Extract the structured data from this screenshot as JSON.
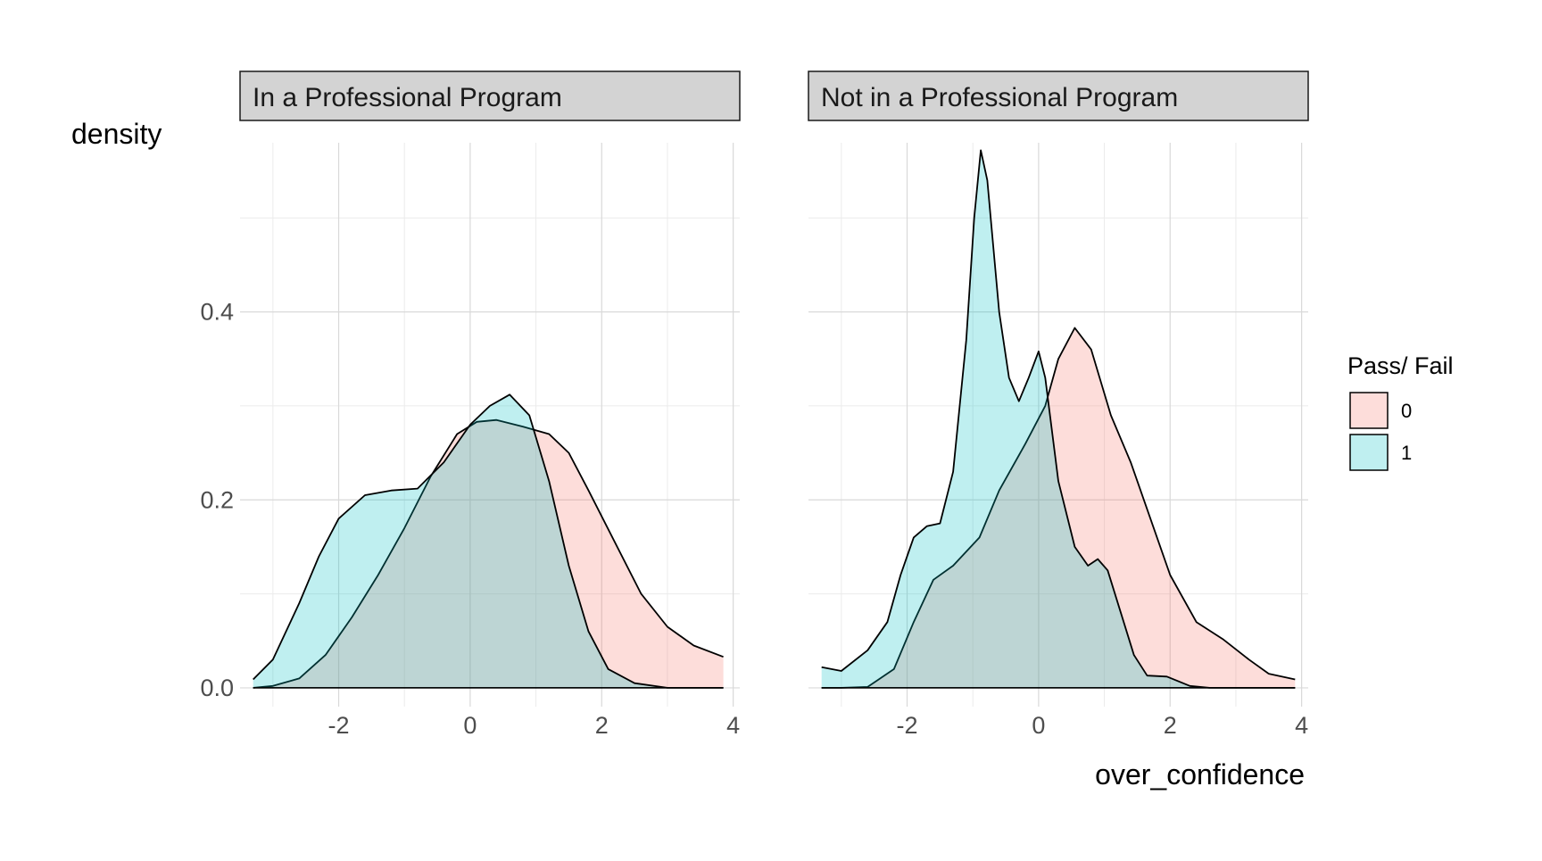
{
  "chart_data": {
    "type": "area",
    "kind": "faceted density plot",
    "ylabel": "density",
    "xlabel": "over_confidence",
    "xlim": [
      -3.5,
      4.1
    ],
    "ylim": [
      -0.02,
      0.58
    ],
    "x_ticks": [
      -2,
      0,
      2,
      4
    ],
    "x_tick_labels": [
      "-2",
      "0",
      "2",
      "4"
    ],
    "y_ticks": [
      0.0,
      0.2,
      0.4
    ],
    "y_tick_labels": [
      "0.0",
      "0.2",
      "0.4"
    ],
    "grid": true,
    "legend": {
      "title": "Pass/ Fail",
      "position": "right",
      "entries": [
        {
          "label": "0",
          "color": "#F8766D"
        },
        {
          "label": "1",
          "color": "#00BFC4"
        }
      ]
    },
    "panels": [
      {
        "strip": "In a Professional Program",
        "series": [
          {
            "name": "0",
            "color": "#F8766D",
            "points": [
              [
                -3.3,
                0.0
              ],
              [
                -3.0,
                0.002
              ],
              [
                -2.6,
                0.01
              ],
              [
                -2.2,
                0.035
              ],
              [
                -1.8,
                0.075
              ],
              [
                -1.4,
                0.12
              ],
              [
                -1.0,
                0.17
              ],
              [
                -0.6,
                0.225
              ],
              [
                -0.2,
                0.27
              ],
              [
                0.1,
                0.283
              ],
              [
                0.4,
                0.285
              ],
              [
                0.8,
                0.278
              ],
              [
                1.2,
                0.27
              ],
              [
                1.5,
                0.25
              ],
              [
                1.8,
                0.21
              ],
              [
                2.2,
                0.155
              ],
              [
                2.6,
                0.1
              ],
              [
                3.0,
                0.065
              ],
              [
                3.4,
                0.045
              ],
              [
                3.85,
                0.033
              ]
            ]
          },
          {
            "name": "1",
            "color": "#00BFC4",
            "points": [
              [
                -3.3,
                0.009
              ],
              [
                -3.0,
                0.03
              ],
              [
                -2.6,
                0.09
              ],
              [
                -2.3,
                0.14
              ],
              [
                -2.0,
                0.18
              ],
              [
                -1.6,
                0.205
              ],
              [
                -1.2,
                0.21
              ],
              [
                -0.8,
                0.212
              ],
              [
                -0.4,
                0.24
              ],
              [
                0.0,
                0.28
              ],
              [
                0.3,
                0.3
              ],
              [
                0.6,
                0.312
              ],
              [
                0.9,
                0.29
              ],
              [
                1.2,
                0.22
              ],
              [
                1.5,
                0.13
              ],
              [
                1.8,
                0.06
              ],
              [
                2.1,
                0.02
              ],
              [
                2.5,
                0.005
              ],
              [
                3.0,
                0.0
              ],
              [
                3.85,
                0.0
              ]
            ]
          }
        ]
      },
      {
        "strip": "Not in a Professional Program",
        "series": [
          {
            "name": "0",
            "color": "#F8766D",
            "points": [
              [
                -3.3,
                0.0
              ],
              [
                -3.0,
                0.0
              ],
              [
                -2.6,
                0.001
              ],
              [
                -2.2,
                0.02
              ],
              [
                -1.9,
                0.07
              ],
              [
                -1.6,
                0.115
              ],
              [
                -1.3,
                0.13
              ],
              [
                -0.9,
                0.16
              ],
              [
                -0.6,
                0.21
              ],
              [
                -0.2,
                0.26
              ],
              [
                0.1,
                0.3
              ],
              [
                0.3,
                0.35
              ],
              [
                0.55,
                0.383
              ],
              [
                0.8,
                0.36
              ],
              [
                1.1,
                0.29
              ],
              [
                1.4,
                0.24
              ],
              [
                1.7,
                0.18
              ],
              [
                2.0,
                0.12
              ],
              [
                2.4,
                0.07
              ],
              [
                2.8,
                0.052
              ],
              [
                3.2,
                0.03
              ],
              [
                3.5,
                0.015
              ],
              [
                3.9,
                0.009
              ]
            ]
          },
          {
            "name": "1",
            "color": "#00BFC4",
            "points": [
              [
                -3.3,
                0.022
              ],
              [
                -3.0,
                0.018
              ],
              [
                -2.6,
                0.04
              ],
              [
                -2.3,
                0.07
              ],
              [
                -2.1,
                0.12
              ],
              [
                -1.9,
                0.16
              ],
              [
                -1.7,
                0.172
              ],
              [
                -1.5,
                0.175
              ],
              [
                -1.3,
                0.23
              ],
              [
                -1.1,
                0.37
              ],
              [
                -0.98,
                0.5
              ],
              [
                -0.88,
                0.572
              ],
              [
                -0.78,
                0.54
              ],
              [
                -0.6,
                0.4
              ],
              [
                -0.45,
                0.33
              ],
              [
                -0.3,
                0.305
              ],
              [
                -0.15,
                0.33
              ],
              [
                0.0,
                0.358
              ],
              [
                0.1,
                0.33
              ],
              [
                0.3,
                0.22
              ],
              [
                0.55,
                0.15
              ],
              [
                0.75,
                0.13
              ],
              [
                0.9,
                0.137
              ],
              [
                1.05,
                0.125
              ],
              [
                1.25,
                0.08
              ],
              [
                1.45,
                0.035
              ],
              [
                1.65,
                0.013
              ],
              [
                1.95,
                0.012
              ],
              [
                2.3,
                0.002
              ],
              [
                2.6,
                0.0
              ],
              [
                3.9,
                0.0
              ]
            ]
          }
        ]
      }
    ]
  }
}
